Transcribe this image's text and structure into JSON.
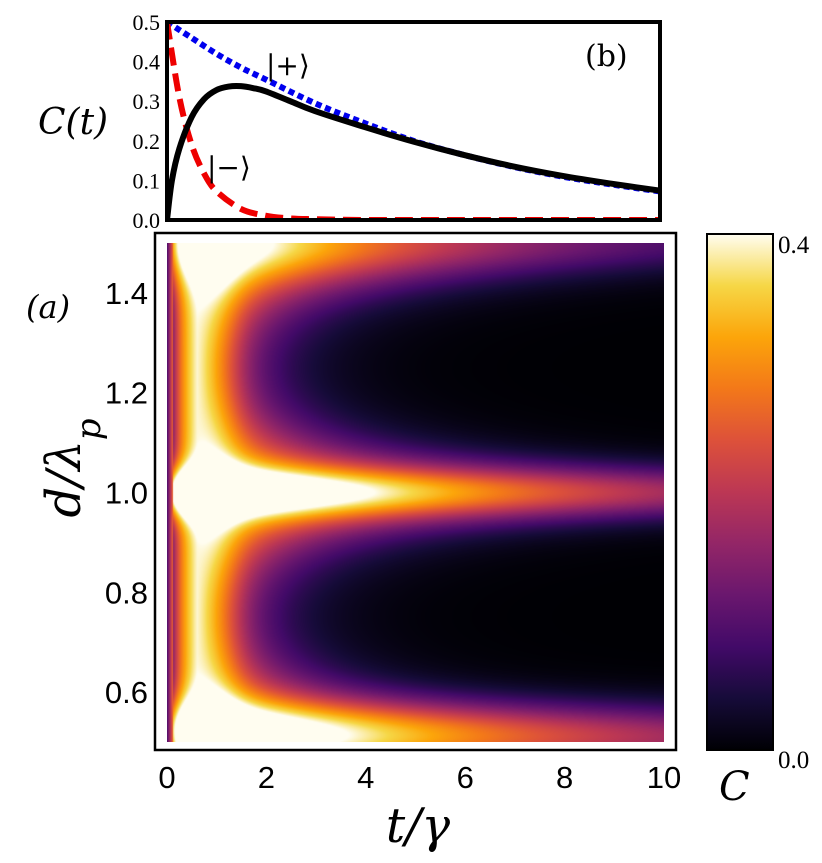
{
  "chart_data": [
    {
      "id": "b",
      "type": "line",
      "panel_label": "(b)",
      "ylabel": "C(t)",
      "xlim": [
        0,
        10
      ],
      "ylim": [
        0,
        0.5
      ],
      "yticks": [
        "0.0",
        "0.1",
        "0.2",
        "0.3",
        "0.4",
        "0.5"
      ],
      "grid": false,
      "series": [
        {
          "label": "|+⟩",
          "color": "#0000ee",
          "style": "dotted",
          "x": [
            0,
            0.5,
            1,
            1.5,
            2,
            3,
            4,
            5,
            6,
            7,
            8,
            9,
            10
          ],
          "y": [
            0.5,
            0.46,
            0.42,
            0.385,
            0.355,
            0.295,
            0.245,
            0.2,
            0.165,
            0.135,
            0.11,
            0.09,
            0.072
          ]
        },
        {
          "label": "|−⟩",
          "color": "#ee0000",
          "style": "dashed",
          "x": [
            0,
            0.25,
            0.5,
            0.75,
            1,
            1.5,
            2,
            2.5,
            3,
            4,
            6,
            10
          ],
          "y": [
            0.5,
            0.31,
            0.19,
            0.118,
            0.073,
            0.028,
            0.011,
            0.004,
            0.002,
            0.0,
            0.0,
            0.0
          ]
        },
        {
          "label": "",
          "color": "#000000",
          "style": "solid",
          "x": [
            0,
            0.1,
            0.25,
            0.5,
            0.75,
            1,
            1.25,
            1.5,
            1.75,
            2,
            2.5,
            3,
            4,
            5,
            6,
            7,
            8,
            9,
            10
          ],
          "y": [
            0,
            0.1,
            0.18,
            0.26,
            0.305,
            0.328,
            0.337,
            0.338,
            0.333,
            0.325,
            0.3,
            0.275,
            0.235,
            0.198,
            0.165,
            0.136,
            0.112,
            0.092,
            0.074
          ]
        }
      ]
    },
    {
      "id": "a",
      "type": "heatmap",
      "panel_label": "(a)",
      "xlabel": "t/γ",
      "ylabel": "d/λ_p",
      "xlim": [
        0,
        10
      ],
      "ylim": [
        0.5,
        1.5
      ],
      "xticks": [
        "0",
        "2",
        "4",
        "6",
        "8",
        "10"
      ],
      "yticks": [
        "0.6",
        "0.8",
        "1.0",
        "1.2",
        "1.4"
      ],
      "colorbar": {
        "label": "C",
        "range": [
          0.0,
          0.4
        ],
        "ticks": [
          "0.0",
          "0.4"
        ],
        "colormap": "inferno"
      },
      "description_values": {
        "feature_peak_time": 1.0,
        "band_center_d": 1.0,
        "dark_minima_d": [
          0.75,
          1.25
        ],
        "dark_minima_t": 3.8
      }
    }
  ]
}
